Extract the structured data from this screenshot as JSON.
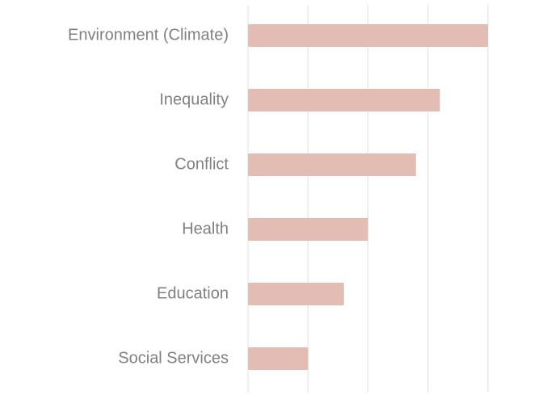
{
  "chart_data": {
    "type": "bar",
    "orientation": "horizontal",
    "categories": [
      "Environment (Climate)",
      "Inequality",
      "Conflict",
      "Health",
      "Education",
      "Social Services"
    ],
    "values": [
      4,
      3.2,
      2.8,
      2,
      1.6,
      1
    ],
    "color": "#e3bdb3",
    "xlim": [
      0,
      4
    ],
    "xticks": [
      0,
      1,
      2,
      3,
      4
    ],
    "grid": true
  }
}
